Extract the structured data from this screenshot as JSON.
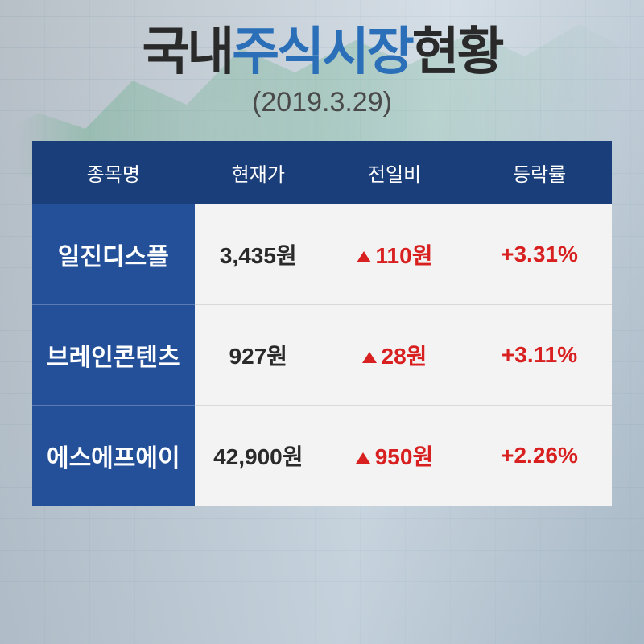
{
  "title": {
    "seg1": "국내",
    "seg2": "주식시장",
    "seg3": "현황",
    "date": "(2019.3.29)",
    "fontsize_main": 64,
    "fontsize_date": 34,
    "color_dark": "#2a2a2a",
    "color_accent": "#2a6fb8",
    "color_date": "#4a4a4a"
  },
  "table": {
    "header_bg": "#1a3e7a",
    "name_col_bg": "#24509a",
    "body_bg": "#f3f3f3",
    "header_fontsize": 24,
    "body_fontsize": 28,
    "name_fontsize": 30,
    "up_color": "#d82020",
    "columns": [
      "종목명",
      "현재가",
      "전일비",
      "등락률"
    ],
    "col_widths": [
      "28%",
      "22%",
      "25%",
      "25%"
    ],
    "rows": [
      {
        "name": "일진디스플",
        "price": "3,435원",
        "change": "110원",
        "direction": "up",
        "rate": "+3.31%"
      },
      {
        "name": "브레인콘텐츠",
        "price": "927원",
        "change": "28원",
        "direction": "up",
        "rate": "+3.11%"
      },
      {
        "name": "에스에프에이",
        "price": "42,900원",
        "change": "950원",
        "direction": "up",
        "rate": "+2.26%"
      }
    ]
  }
}
